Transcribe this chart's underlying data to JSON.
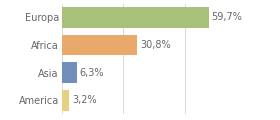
{
  "categories": [
    "Europa",
    "Africa",
    "Asia",
    "America"
  ],
  "values": [
    59.7,
    30.8,
    6.3,
    3.2
  ],
  "labels": [
    "59,7%",
    "30,8%",
    "6,3%",
    "3,2%"
  ],
  "bar_colors": [
    "#a8c07a",
    "#e8a96a",
    "#7090bb",
    "#e8d080"
  ],
  "xlim": [
    0,
    75
  ],
  "background_color": "#ffffff",
  "bar_height": 0.75,
  "label_fontsize": 7.0,
  "ytick_fontsize": 7.0,
  "grid_ticks": [
    0,
    25,
    50,
    75
  ],
  "grid_color": "#cccccc",
  "text_color": "#666666"
}
